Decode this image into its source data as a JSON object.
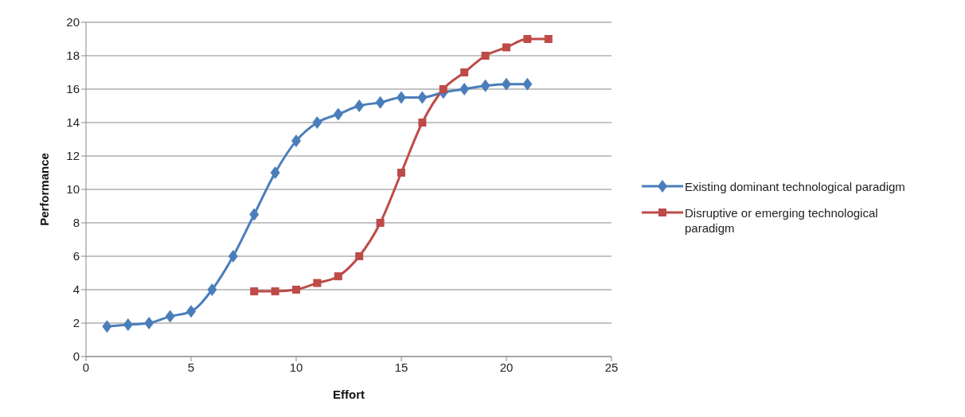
{
  "chart_data": {
    "type": "line",
    "xlabel": "Effort",
    "ylabel": "Performance",
    "xlim": [
      0,
      25
    ],
    "xticks": [
      0,
      5,
      10,
      15,
      20,
      25
    ],
    "ylim": [
      0,
      20
    ],
    "yticks": [
      0,
      2,
      4,
      6,
      8,
      10,
      12,
      14,
      16,
      18,
      20
    ],
    "grid": "y",
    "legend": "right",
    "line_style": "solid",
    "series": [
      {
        "name": "Existing dominant technological paradigm",
        "color": "#4a7ebb",
        "marker": "diamond",
        "x": [
          1,
          2,
          3,
          4,
          5,
          6,
          7,
          8,
          9,
          10,
          11,
          12,
          13,
          14,
          15,
          16,
          17,
          18,
          19,
          20,
          21
        ],
        "values": [
          1.8,
          1.9,
          2.0,
          2.4,
          2.7,
          4.0,
          6.0,
          8.5,
          11.0,
          12.9,
          14.0,
          14.5,
          15.0,
          15.2,
          15.5,
          15.5,
          15.8,
          16.0,
          16.2,
          16.3,
          16.3
        ]
      },
      {
        "name": "Disruptive or emerging technological paradigm",
        "color": "#be4b48",
        "marker": "square",
        "x": [
          8,
          9,
          10,
          11,
          12,
          13,
          14,
          15,
          16,
          17,
          18,
          19,
          20,
          21,
          22
        ],
        "values": [
          3.9,
          3.9,
          4.0,
          4.4,
          4.8,
          6.0,
          8.0,
          11.0,
          14.0,
          16.0,
          17.0,
          18.0,
          18.5,
          19.0,
          19.0
        ]
      }
    ]
  }
}
